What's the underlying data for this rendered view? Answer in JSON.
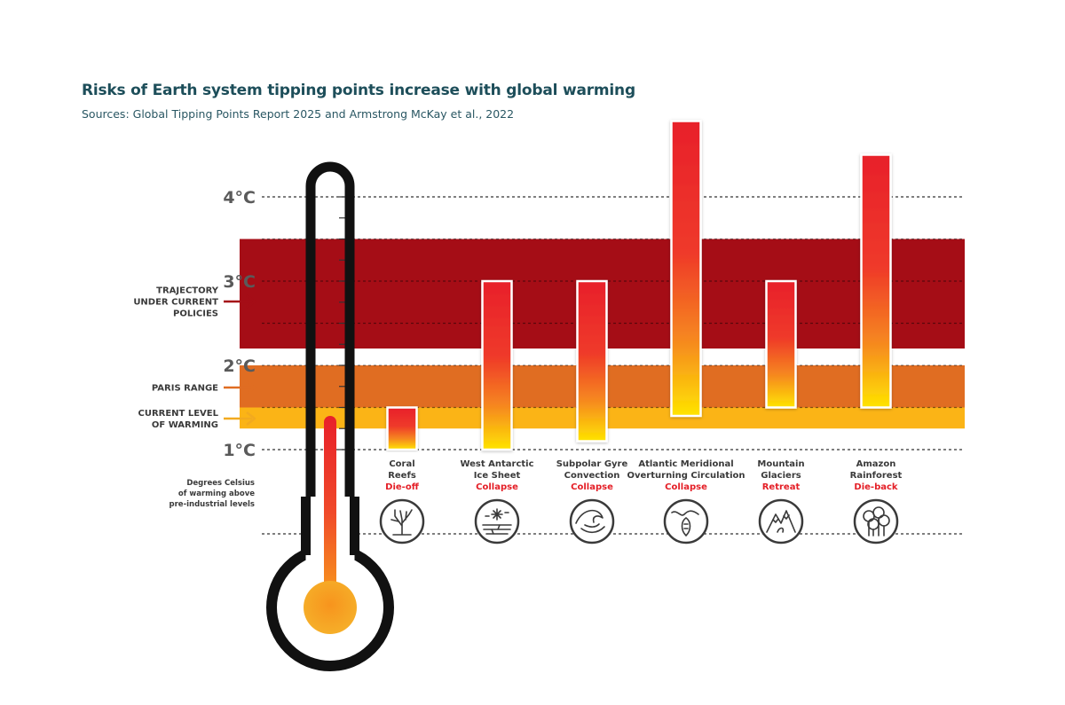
{
  "header": {
    "title": "Risks of Earth system tipping points increase with global warming",
    "subtitle": "Sources: Global Tipping Points Report 2025 and Armstrong McKay et al., 2022"
  },
  "chart_data": {
    "type": "bar",
    "ylim": [
      0.5,
      5.5
    ],
    "y_ticks": [
      {
        "value": 1,
        "label": "1°C"
      },
      {
        "value": 2,
        "label": "2°C"
      },
      {
        "value": 3,
        "label": "3°C"
      },
      {
        "value": 4,
        "label": "4°C"
      }
    ],
    "y_axis_note": [
      "Degrees Celsius",
      "of warming above",
      "pre-industrial levels"
    ],
    "bands": [
      {
        "id": "trajectory",
        "label_lines": [
          "TRAJECTORY",
          "UNDER CURRENT",
          "POLICIES"
        ],
        "range": [
          2.2,
          3.5
        ],
        "color": "#a50d16",
        "arrow_color": "#a50d16"
      },
      {
        "id": "paris",
        "label_lines": [
          "PARIS RANGE"
        ],
        "range": [
          1.5,
          2.0
        ],
        "color": "#e06d22",
        "arrow_color": "#e06d22"
      },
      {
        "id": "current",
        "label_lines": [
          "CURRENT LEVEL",
          "OF WARMING"
        ],
        "range": [
          1.25,
          1.5
        ],
        "color": "#fbb416",
        "arrow_color": "#f2aa1f"
      }
    ],
    "thermometer_level": 1.4,
    "categories": [
      {
        "name_lines": [
          "Coral",
          "Reefs"
        ],
        "impact": "Die-off",
        "icon": "coral-icon",
        "low": 1.0,
        "high": 1.5
      },
      {
        "name_lines": [
          "West Antarctic",
          "Ice Sheet"
        ],
        "impact": "Collapse",
        "icon": "ice-sheet-icon",
        "low": 1.0,
        "high": 3.0
      },
      {
        "name_lines": [
          "Subpolar Gyre",
          "Convection"
        ],
        "impact": "Collapse",
        "icon": "ocean-wave-icon",
        "low": 1.1,
        "high": 3.0
      },
      {
        "name_lines": [
          "Atlantic Meridional",
          "Overturning Circulation"
        ],
        "impact": "Collapse",
        "icon": "ocean-circulation-icon",
        "low": 1.4,
        "high": 4.9
      },
      {
        "name_lines": [
          "Mountain",
          "Glaciers"
        ],
        "impact": "Retreat",
        "icon": "mountain-icon",
        "low": 1.5,
        "high": 3.0
      },
      {
        "name_lines": [
          "Amazon",
          "Rainforest"
        ],
        "impact": "Die-back",
        "icon": "forest-icon",
        "low": 1.5,
        "high": 4.5
      }
    ],
    "colors": {
      "bar_top": "#e8202a",
      "bar_mid": "#f2452b",
      "bar_bottom": "#ffe400",
      "impact_text": "#e41e26"
    }
  }
}
